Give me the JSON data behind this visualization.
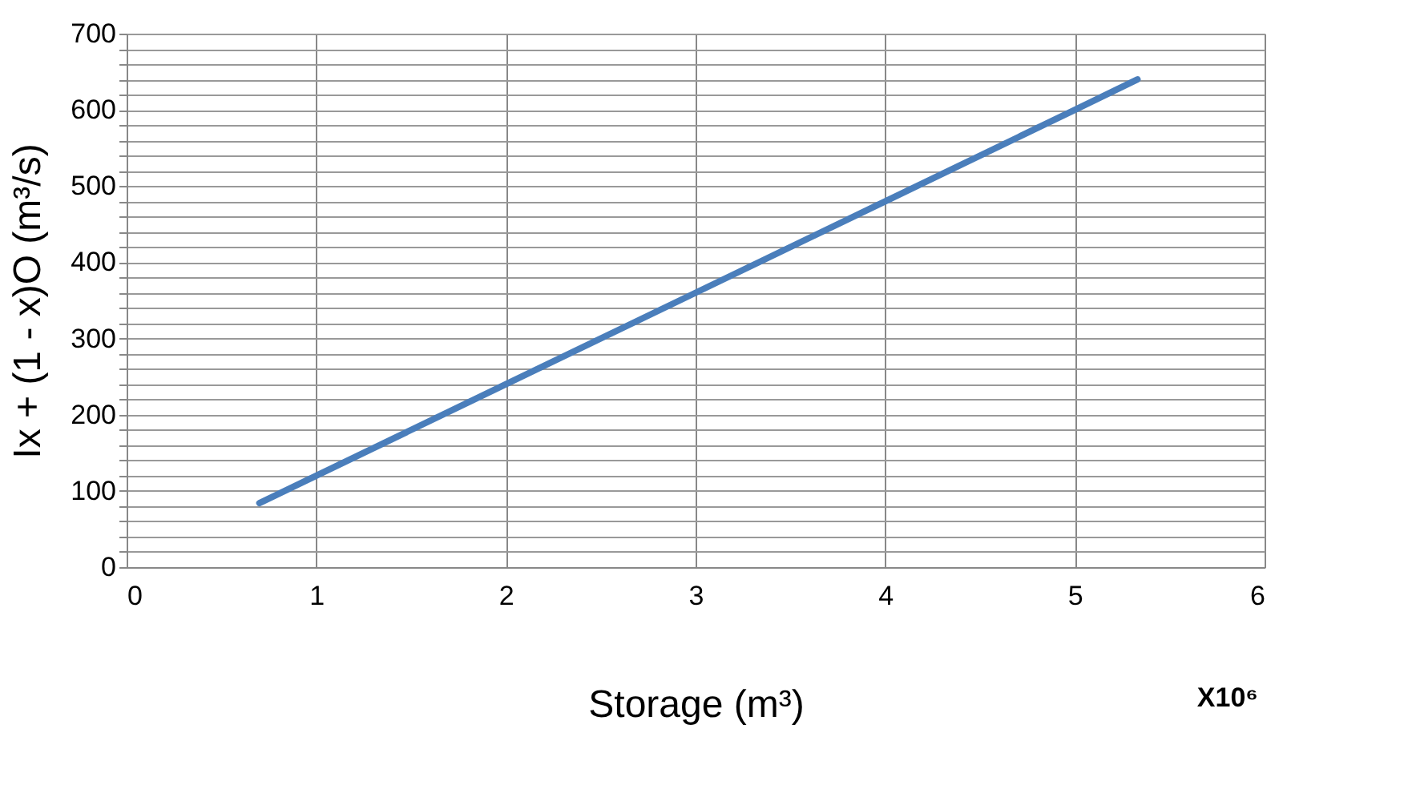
{
  "chart_data": {
    "type": "line",
    "x": [
      0.7,
      1,
      2,
      3,
      4,
      5,
      5.33
    ],
    "series": [
      {
        "color": "#4a7ebb",
        "values": [
          84,
          120,
          240,
          360,
          480,
          600,
          640
        ]
      }
    ],
    "xlabel": "Storage (m³)",
    "ylabel": "Ix + (1 - x)O   (m³/s)",
    "xlim": [
      0,
      6
    ],
    "xticks": [
      0,
      1,
      2,
      3,
      4,
      5,
      6
    ],
    "ylim": [
      0,
      700
    ],
    "yticks": [
      0,
      {
        "value": 20,
        "label": null
      },
      {
        "value": 40,
        "label": null
      },
      {
        "value": 60,
        "label": null
      },
      {
        "value": 80,
        "label": null
      },
      100,
      {
        "value": 120,
        "label": null
      },
      {
        "value": 140,
        "label": null
      },
      {
        "value": 160,
        "label": null
      },
      {
        "value": 180,
        "label": null
      },
      200,
      {
        "value": 220,
        "label": null
      },
      {
        "value": 240,
        "label": null
      },
      {
        "value": 260,
        "label": null
      },
      {
        "value": 280,
        "label": null
      },
      300,
      {
        "value": 320,
        "label": null
      },
      {
        "value": 340,
        "label": null
      },
      {
        "value": 360,
        "label": null
      },
      {
        "value": 380,
        "label": null
      },
      400,
      {
        "value": 420,
        "label": null
      },
      {
        "value": 440,
        "label": null
      },
      {
        "value": 460,
        "label": null
      },
      {
        "value": 480,
        "label": null
      },
      500,
      {
        "value": 520,
        "label": null
      },
      {
        "value": 540,
        "label": null
      },
      {
        "value": 560,
        "label": null
      },
      {
        "value": 580,
        "label": null
      },
      600,
      {
        "value": 620,
        "label": null
      },
      {
        "value": 640,
        "label": null
      },
      {
        "value": 660,
        "label": null
      },
      {
        "value": 680,
        "label": null
      },
      700
    ],
    "grid": true,
    "marker": "none",
    "line_style": "solid",
    "annotations": [
      "X10⁶"
    ]
  }
}
